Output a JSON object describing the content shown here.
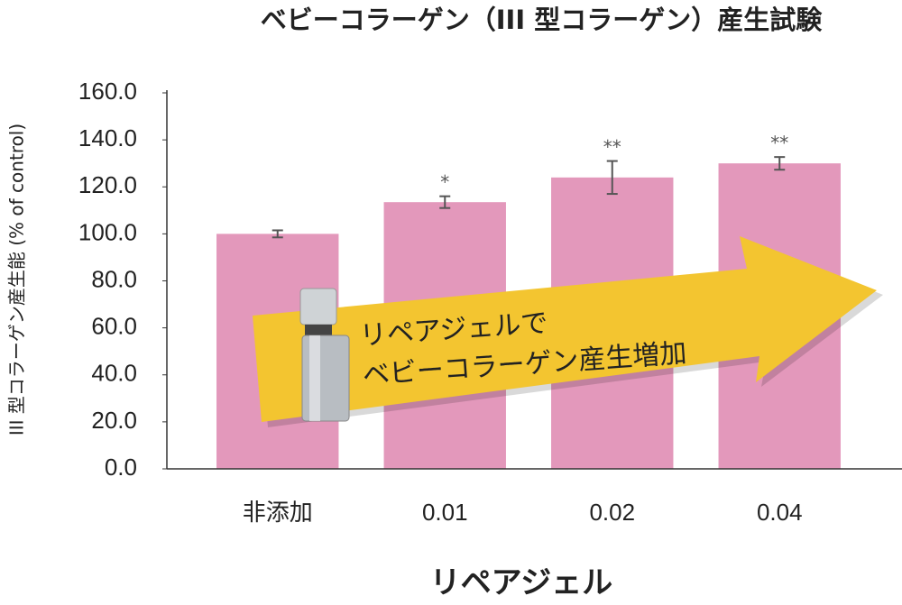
{
  "chart_data": {
    "type": "bar",
    "title": "ベビーコラーゲン（III 型コラーゲン）産生試験",
    "y_axis_label": "III 型コラーゲン産生能 (% of control)",
    "x_axis_label": "リペアジェル",
    "categories": [
      "非添加",
      "0.01",
      "0.02",
      "0.04"
    ],
    "values": [
      100,
      113.5,
      124,
      130
    ],
    "errors": [
      1.5,
      2.5,
      7,
      2.7
    ],
    "significance": [
      null,
      "*",
      "**",
      "**"
    ],
    "color": "#e398bb",
    "ylim": [
      0,
      160
    ],
    "yticks": [
      {
        "value": 0,
        "label": "0.0"
      },
      {
        "value": 20,
        "label": "20.0"
      },
      {
        "value": 40,
        "label": "40.0"
      },
      {
        "value": 60,
        "label": "60.0"
      },
      {
        "value": 80,
        "label": "80.0"
      },
      {
        "value": 100,
        "label": "100.0"
      },
      {
        "value": 120,
        "label": "120.0"
      },
      {
        "value": 140,
        "label": "140.0"
      },
      {
        "value": 160,
        "label": "160.0"
      }
    ],
    "annotation": [
      "リペアジェルで",
      "ベビーコラーゲン産生増加"
    ]
  }
}
